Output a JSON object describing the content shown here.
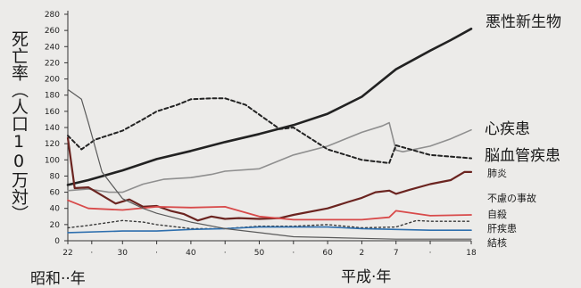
{
  "chart_data": {
    "type": "line",
    "ylabel": "死亡率（人口10万対）",
    "ylim": [
      0,
      280
    ],
    "yticks": [
      0,
      20,
      40,
      60,
      80,
      100,
      120,
      140,
      160,
      180,
      200,
      220,
      240,
      260,
      280
    ],
    "xlim": [
      1947,
      2006
    ],
    "xticks": [
      {
        "x": 1947,
        "label": "22"
      },
      {
        "x": 1950.5,
        "label": "·"
      },
      {
        "x": 1955,
        "label": "30"
      },
      {
        "x": 1960,
        "label": "·"
      },
      {
        "x": 1965,
        "label": "40"
      },
      {
        "x": 1970,
        "label": "·"
      },
      {
        "x": 1975,
        "label": "50"
      },
      {
        "x": 1980,
        "label": "·"
      },
      {
        "x": 1985,
        "label": "60"
      },
      {
        "x": 1990,
        "label": "2"
      },
      {
        "x": 1995,
        "label": "7"
      },
      {
        "x": 2000,
        "label": "·"
      },
      {
        "x": 2006,
        "label": "18"
      }
    ],
    "era_labels": {
      "showa": "昭和··年",
      "heisei": "平成·年"
    },
    "series": [
      {
        "name": "悪性新生物",
        "color": "#222222",
        "width": 2.6,
        "dash": "",
        "points": [
          [
            1947,
            69
          ],
          [
            1950,
            75
          ],
          [
            1955,
            87
          ],
          [
            1960,
            101
          ],
          [
            1965,
            111
          ],
          [
            1970,
            122
          ],
          [
            1975,
            132
          ],
          [
            1980,
            143
          ],
          [
            1985,
            157
          ],
          [
            1990,
            178
          ],
          [
            1995,
            212
          ],
          [
            2000,
            235
          ],
          [
            2003,
            248
          ],
          [
            2006,
            262
          ]
        ]
      },
      {
        "name": "心疾患",
        "color": "#8f8f8f",
        "width": 1.6,
        "dash": "",
        "points": [
          [
            1947,
            62
          ],
          [
            1950,
            64
          ],
          [
            1953,
            60
          ],
          [
            1955,
            60
          ],
          [
            1958,
            70
          ],
          [
            1961,
            76
          ],
          [
            1965,
            78
          ],
          [
            1968,
            82
          ],
          [
            1970,
            86
          ],
          [
            1975,
            89
          ],
          [
            1980,
            106
          ],
          [
            1985,
            117
          ],
          [
            1990,
            134
          ],
          [
            1993,
            142
          ],
          [
            1994,
            146
          ],
          [
            1995,
            112
          ],
          [
            1996,
            110
          ],
          [
            2000,
            117
          ],
          [
            2003,
            126
          ],
          [
            2006,
            137
          ]
        ]
      },
      {
        "name": "脳血管疾患",
        "color": "#222222",
        "width": 2.0,
        "dash": "4 3",
        "points": [
          [
            1947,
            130
          ],
          [
            1949,
            113
          ],
          [
            1951,
            125
          ],
          [
            1955,
            136
          ],
          [
            1958,
            150
          ],
          [
            1960,
            160
          ],
          [
            1963,
            168
          ],
          [
            1965,
            175
          ],
          [
            1968,
            176
          ],
          [
            1970,
            176
          ],
          [
            1973,
            168
          ],
          [
            1975,
            156
          ],
          [
            1978,
            138
          ],
          [
            1980,
            140
          ],
          [
            1985,
            113
          ],
          [
            1990,
            100
          ],
          [
            1994,
            96
          ],
          [
            1995,
            118
          ],
          [
            2000,
            106
          ],
          [
            2006,
            102
          ]
        ]
      },
      {
        "name": "肺炎",
        "color": "#6b2420",
        "width": 2.2,
        "dash": "",
        "points": [
          [
            1947,
            127
          ],
          [
            1948,
            65
          ],
          [
            1950,
            66
          ],
          [
            1952,
            56
          ],
          [
            1954,
            46
          ],
          [
            1956,
            51
          ],
          [
            1958,
            42
          ],
          [
            1960,
            43
          ],
          [
            1962,
            37
          ],
          [
            1964,
            33
          ],
          [
            1966,
            25
          ],
          [
            1968,
            30
          ],
          [
            1970,
            27
          ],
          [
            1972,
            28
          ],
          [
            1975,
            27
          ],
          [
            1978,
            28
          ],
          [
            1980,
            32
          ],
          [
            1985,
            40
          ],
          [
            1988,
            48
          ],
          [
            1990,
            53
          ],
          [
            1992,
            60
          ],
          [
            1994,
            62
          ],
          [
            1995,
            58
          ],
          [
            1997,
            63
          ],
          [
            2000,
            70
          ],
          [
            2003,
            75
          ],
          [
            2005,
            85
          ],
          [
            2006,
            85
          ]
        ]
      },
      {
        "name": "不慮の事故",
        "color": "#d84a4a",
        "width": 1.8,
        "dash": "",
        "points": [
          [
            1947,
            50
          ],
          [
            1950,
            40
          ],
          [
            1955,
            38
          ],
          [
            1960,
            42
          ],
          [
            1965,
            41
          ],
          [
            1970,
            42
          ],
          [
            1975,
            30
          ],
          [
            1980,
            26
          ],
          [
            1985,
            26
          ],
          [
            1990,
            26
          ],
          [
            1994,
            29
          ],
          [
            1995,
            37
          ],
          [
            2000,
            31
          ],
          [
            2006,
            32
          ]
        ]
      },
      {
        "name": "自殺",
        "color": "#3a3a3a",
        "width": 1.4,
        "dash": "2 3",
        "points": [
          [
            1947,
            16
          ],
          [
            1950,
            19
          ],
          [
            1955,
            25
          ],
          [
            1958,
            23
          ],
          [
            1960,
            20
          ],
          [
            1965,
            15
          ],
          [
            1970,
            15
          ],
          [
            1975,
            18
          ],
          [
            1980,
            18
          ],
          [
            1985,
            20
          ],
          [
            1990,
            16
          ],
          [
            1995,
            17
          ],
          [
            1998,
            25
          ],
          [
            2000,
            24
          ],
          [
            2006,
            24
          ]
        ]
      },
      {
        "name": "肝疾患",
        "color": "#2e6fae",
        "width": 1.6,
        "dash": "",
        "points": [
          [
            1947,
            10
          ],
          [
            1955,
            12
          ],
          [
            1960,
            12
          ],
          [
            1965,
            14
          ],
          [
            1970,
            15
          ],
          [
            1975,
            17
          ],
          [
            1980,
            17
          ],
          [
            1985,
            17
          ],
          [
            1990,
            15
          ],
          [
            1995,
            14
          ],
          [
            2000,
            13
          ],
          [
            2006,
            13
          ]
        ]
      },
      {
        "name": "結核",
        "color": "#5a5a5a",
        "width": 1.2,
        "dash": "",
        "points": [
          [
            1947,
            187
          ],
          [
            1949,
            175
          ],
          [
            1950,
            146
          ],
          [
            1952,
            85
          ],
          [
            1955,
            52
          ],
          [
            1958,
            40
          ],
          [
            1960,
            34
          ],
          [
            1965,
            23
          ],
          [
            1970,
            15
          ],
          [
            1975,
            10
          ],
          [
            1980,
            5
          ],
          [
            1985,
            4
          ],
          [
            1990,
            3
          ],
          [
            1995,
            2
          ],
          [
            2000,
            2
          ],
          [
            2006,
            2
          ]
        ]
      }
    ],
    "labels": [
      {
        "text": "悪性新生物",
        "size": "big"
      },
      {
        "text": "心疾患",
        "size": "big"
      },
      {
        "text": "脳血管疾患",
        "size": "big"
      },
      {
        "text": "肺炎",
        "size": "small"
      },
      {
        "text": "不慮の事故",
        "size": "small"
      },
      {
        "text": "自殺",
        "size": "small"
      },
      {
        "text": "肝疾患",
        "size": "small"
      },
      {
        "text": "結核",
        "size": "small"
      }
    ]
  }
}
